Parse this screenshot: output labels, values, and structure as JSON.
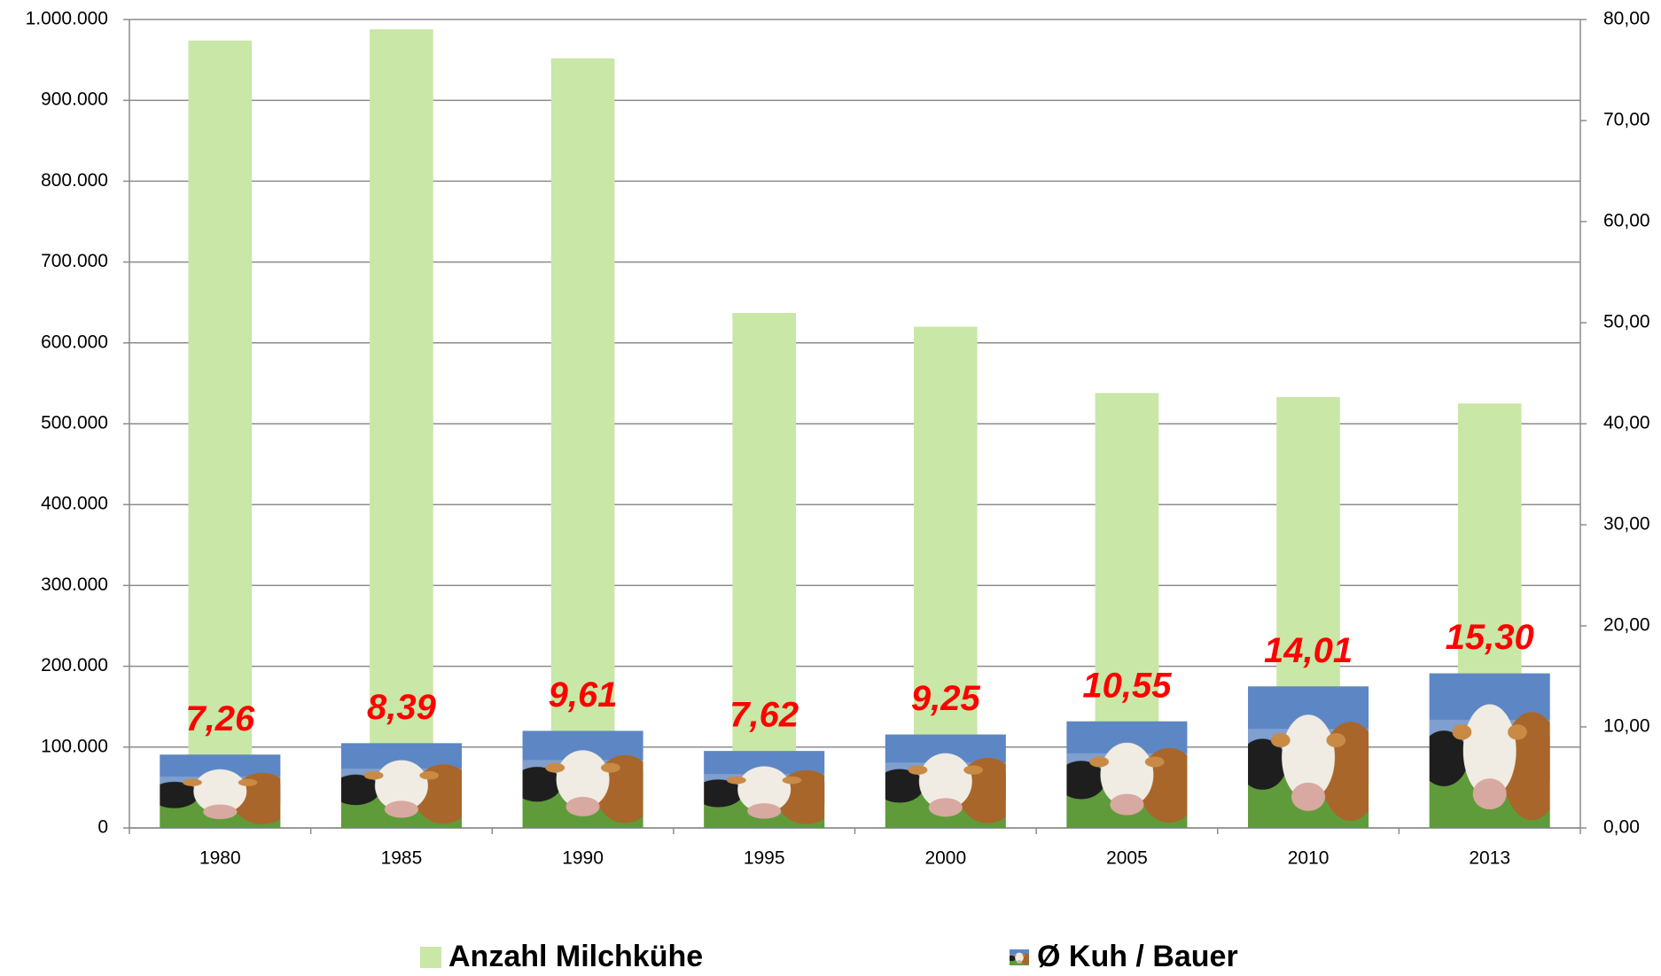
{
  "chart_data": {
    "type": "bar",
    "categories": [
      "1980",
      "1985",
      "1990",
      "1995",
      "2000",
      "2005",
      "2010",
      "2013"
    ],
    "series": [
      {
        "name": "Anzahl Milchkühe",
        "color": "#c9e7a7",
        "values": [
          974000,
          988000,
          952000,
          637000,
          620000,
          538000,
          533000,
          525000
        ]
      },
      {
        "name": "Ø Kuh / Bauer",
        "axis": "y2",
        "values": [
          7.26,
          8.39,
          9.61,
          7.62,
          9.25,
          10.55,
          14.01,
          15.3
        ],
        "value_labels": [
          "7,26",
          "8,39",
          "9,61",
          "7,62",
          "9,25",
          "10,55",
          "14,01",
          "15,30"
        ]
      }
    ],
    "ylim": [
      0,
      1000000
    ],
    "yticks": [
      0,
      {
        "value": 100000,
        "label": "100.000"
      },
      {
        "value": 200000,
        "label": "200.000"
      },
      {
        "value": 300000,
        "label": "300.000"
      },
      {
        "value": 400000,
        "label": "400.000"
      },
      {
        "value": 500000,
        "label": "500.000"
      },
      {
        "value": 600000,
        "label": "600.000"
      },
      {
        "value": 700000,
        "label": "700.000"
      },
      {
        "value": 800000,
        "label": "800.000"
      },
      {
        "value": 900000,
        "label": "900.000"
      },
      {
        "value": 1000000,
        "label": "1.000.000"
      }
    ],
    "y2lim": [
      0,
      80
    ],
    "y2ticks": [
      {
        "value": 0,
        "label": "0,00"
      },
      {
        "value": 10,
        "label": "10,00"
      },
      {
        "value": 20,
        "label": "20,00"
      },
      {
        "value": 30,
        "label": "30,00"
      },
      {
        "value": 40,
        "label": "40,00"
      },
      {
        "value": 50,
        "label": "50,00"
      },
      {
        "value": 60,
        "label": "60,00"
      },
      {
        "value": 70,
        "label": "70,00"
      },
      {
        "value": 80,
        "label": "80,00"
      }
    ],
    "grid": true
  }
}
